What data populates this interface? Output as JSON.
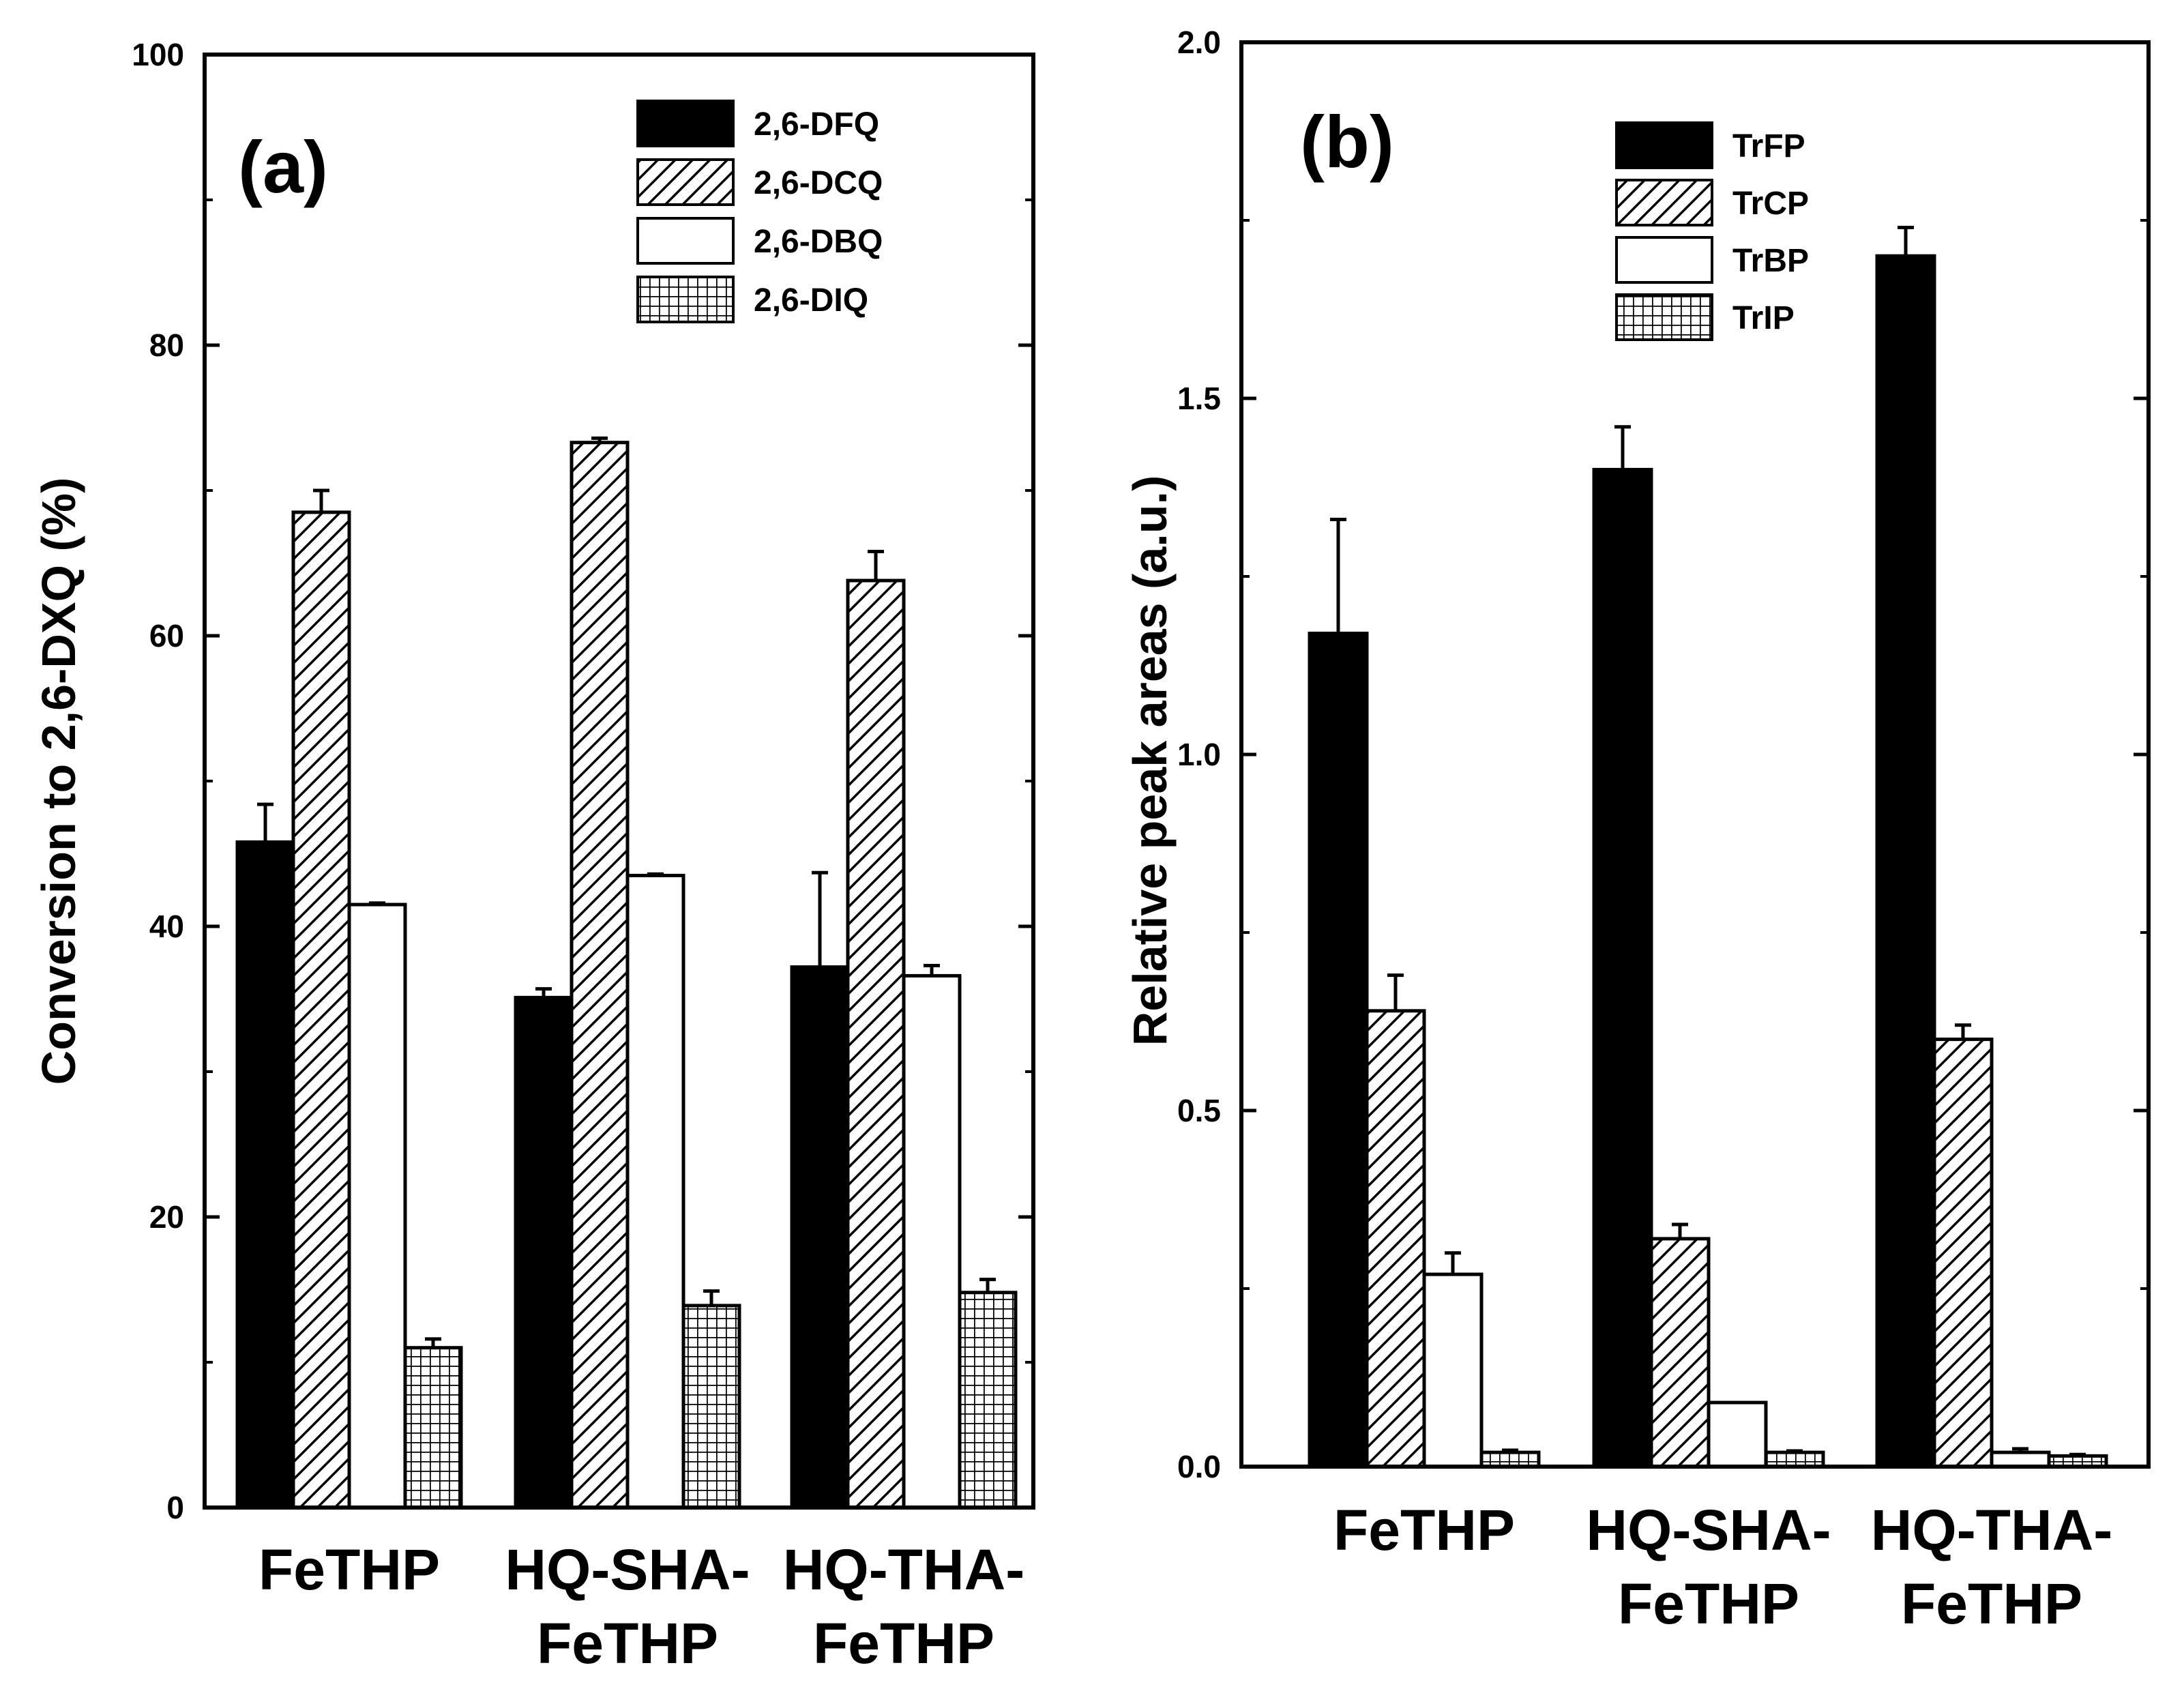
{
  "chart_data": [
    {
      "type": "bar",
      "panel_label": "(a)",
      "ylabel": "Conversion to 2,6-DXQ (%)",
      "xlabel": "",
      "ylim": [
        0,
        100
      ],
      "yticks": [
        0,
        20,
        40,
        60,
        80,
        100
      ],
      "ytick_labels": [
        "0",
        "20",
        "40",
        "60",
        "80",
        "100"
      ],
      "categories": [
        [
          "FeTHP"
        ],
        [
          "HQ-SHA-",
          "FeTHP"
        ],
        [
          "HQ-THA-",
          "FeTHP"
        ]
      ],
      "legend_position": "top-right",
      "series": [
        {
          "name": "2,6-DFQ",
          "pattern": "solid",
          "values": [
            45.8,
            35.1,
            37.2
          ],
          "errors": [
            2.6,
            0.6,
            6.5
          ]
        },
        {
          "name": "2,6-DCQ",
          "pattern": "hatch",
          "values": [
            68.5,
            73.3,
            63.8
          ],
          "errors": [
            1.5,
            0.3,
            2.0
          ]
        },
        {
          "name": "2,6-DBQ",
          "pattern": "open",
          "values": [
            41.5,
            43.5,
            36.6
          ],
          "errors": [
            0.1,
            0.1,
            0.7
          ]
        },
        {
          "name": "2,6-DIQ",
          "pattern": "grid",
          "values": [
            11.0,
            13.9,
            14.8
          ],
          "errors": [
            0.6,
            1.0,
            0.9
          ]
        }
      ]
    },
    {
      "type": "bar",
      "panel_label": "(b)",
      "ylabel": "Relative peak areas (a.u.)",
      "xlabel": "",
      "ylim": [
        0,
        2.0
      ],
      "yticks": [
        0,
        0.5,
        1.0,
        1.5,
        2.0
      ],
      "ytick_labels": [
        "0.0",
        "0.5",
        "1.0",
        "1.5",
        "2.0"
      ],
      "categories": [
        [
          "FeTHP"
        ],
        [
          "HQ-SHA-",
          "FeTHP"
        ],
        [
          "HQ-THA-",
          "FeTHP"
        ]
      ],
      "legend_position": "top-center",
      "series": [
        {
          "name": "TrFP",
          "pattern": "solid",
          "values": [
            1.17,
            1.4,
            1.7
          ],
          "errors": [
            0.16,
            0.06,
            0.04
          ]
        },
        {
          "name": "TrCP",
          "pattern": "hatch",
          "values": [
            0.64,
            0.32,
            0.6
          ],
          "errors": [
            0.05,
            0.02,
            0.02
          ]
        },
        {
          "name": "TrBP",
          "pattern": "open",
          "values": [
            0.27,
            0.09,
            0.02
          ],
          "errors": [
            0.03,
            0.0,
            0.005
          ]
        },
        {
          "name": "TrIP",
          "pattern": "grid",
          "values": [
            0.02,
            0.02,
            0.015
          ],
          "errors": [
            0.003,
            0.002,
            0.002
          ]
        }
      ]
    }
  ]
}
